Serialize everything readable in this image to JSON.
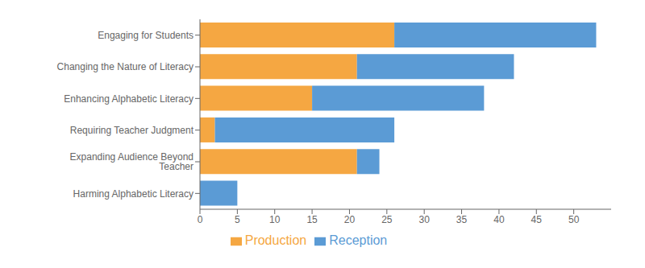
{
  "chart_data": {
    "type": "bar",
    "orientation": "horizontal",
    "stacked": true,
    "categories": [
      "Engaging for Students",
      "Changing the Nature of Literacy",
      "Enhancing Alphabetic Literacy",
      "Requiring Teacher Judgment",
      "Expanding Audience Beyond Teacher",
      "Harming Alphabetic Literacy"
    ],
    "series": [
      {
        "name": "Production",
        "color": "#F5A742",
        "values": [
          26,
          21,
          15,
          2,
          21,
          0
        ]
      },
      {
        "name": "Reception",
        "color": "#5B9BD5",
        "values": [
          27,
          21,
          23,
          24,
          3,
          5
        ]
      }
    ],
    "xlim": [
      0,
      55
    ],
    "xticks": [
      0,
      5,
      10,
      15,
      20,
      25,
      30,
      35,
      40,
      45,
      50
    ],
    "grid": false,
    "legend": "bottom"
  }
}
